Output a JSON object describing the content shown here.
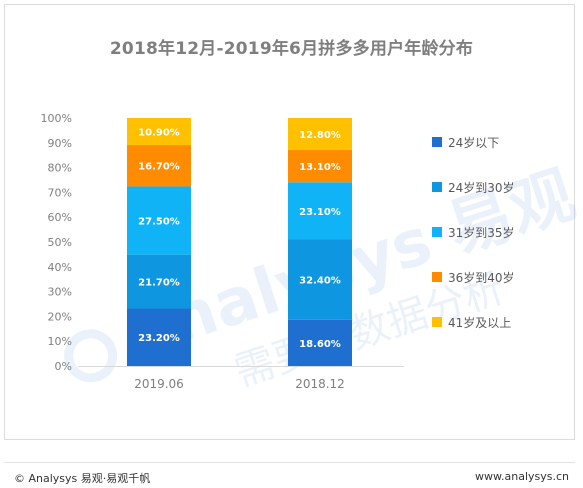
{
  "title": "2018年12月-2019年6月拼多多用户年龄分布",
  "watermark": {
    "brand": "Analysys 易观",
    "slogan": "需要白数据分析"
  },
  "footer": {
    "copyright": "© Analysys 易观·易观千帆",
    "url": "www.analysys.cn"
  },
  "chart_data": {
    "type": "bar",
    "stacked": true,
    "categories": [
      "2019.06",
      "2018.12"
    ],
    "series": [
      {
        "name": "24岁以下",
        "color": "#1F6FD1",
        "values": [
          23.2,
          18.6
        ],
        "labels": [
          "23.20%",
          "18.60%"
        ]
      },
      {
        "name": "24岁到30岁",
        "color": "#0F96E0",
        "values": [
          21.7,
          32.4
        ],
        "labels": [
          "21.70%",
          "32.40%"
        ]
      },
      {
        "name": "31岁到35岁",
        "color": "#10B3F5",
        "values": [
          27.5,
          23.1
        ],
        "labels": [
          "27.50%",
          "23.10%"
        ]
      },
      {
        "name": "36岁到40岁",
        "color": "#FF8C00",
        "values": [
          16.7,
          13.1
        ],
        "labels": [
          "16.70%",
          "13.10%"
        ]
      },
      {
        "name": "41岁及以上",
        "color": "#FFC000",
        "values": [
          10.9,
          12.8
        ],
        "labels": [
          "10.90%",
          "12.80%"
        ]
      }
    ],
    "ylim": [
      0,
      100
    ],
    "yticks": [
      "0%",
      "10%",
      "20%",
      "30%",
      "40%",
      "50%",
      "60%",
      "70%",
      "80%",
      "90%",
      "100%"
    ],
    "legend": "right",
    "grid": false
  }
}
